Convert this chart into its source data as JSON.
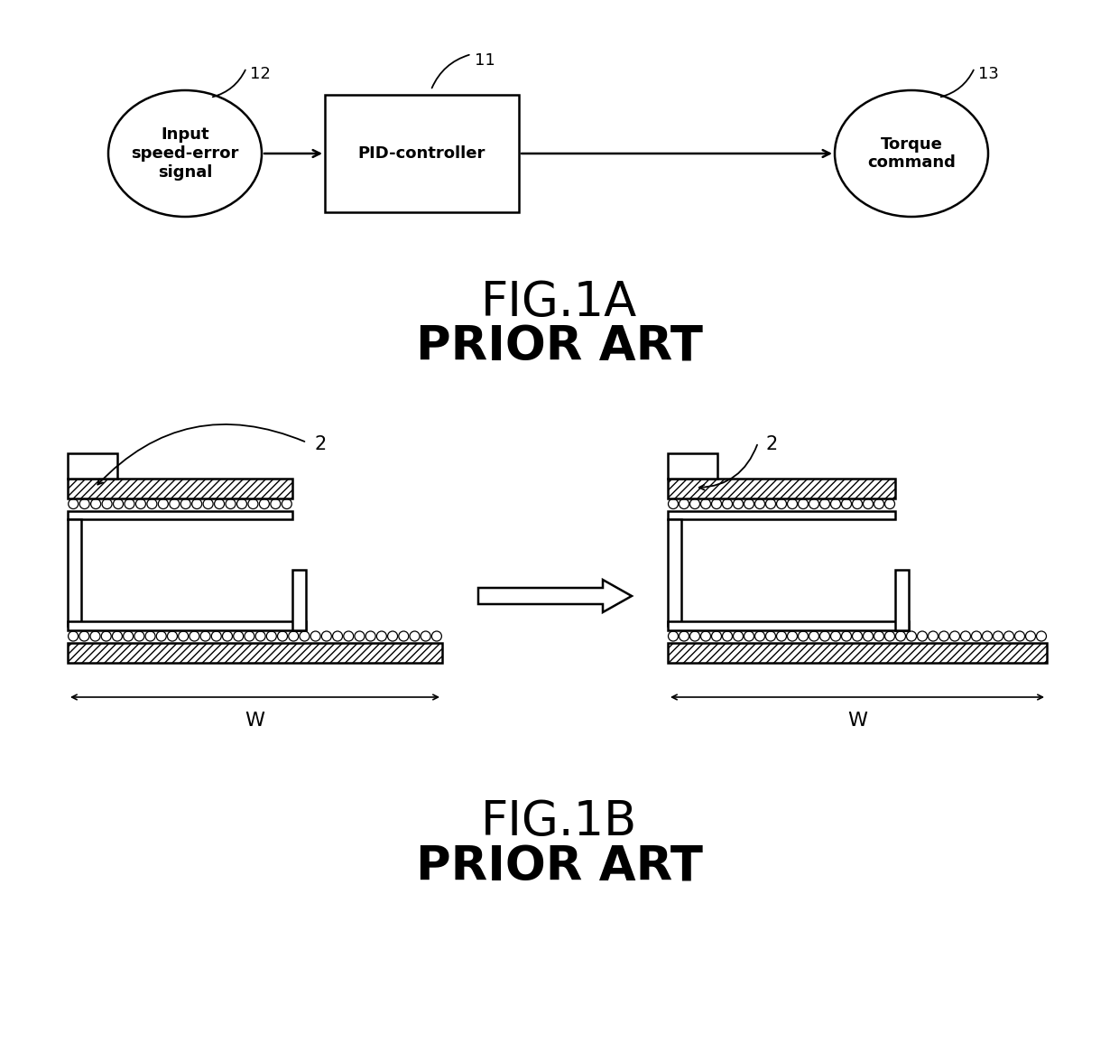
{
  "bg_color": "#ffffff",
  "fig1a_title": "FIG.1A",
  "fig1a_subtitle": "PRIOR ART",
  "fig1b_title": "FIG.1B",
  "fig1b_subtitle": "PRIOR ART",
  "ellipse1_label": "Input\nspeed-error\nsignal",
  "ellipse1_ref": "12",
  "rect_label": "PID-controller",
  "rect_ref": "11",
  "ellipse2_label": "Torque\ncommand",
  "ellipse2_ref": "13",
  "label2": "2",
  "label_w": "W",
  "lw_main": 1.8,
  "lw_hatch": 1.5,
  "ball_r": 5.5,
  "fig1a_fontsize": 38,
  "fig1b_fontsize": 38,
  "diagram_text_fontsize": 13
}
